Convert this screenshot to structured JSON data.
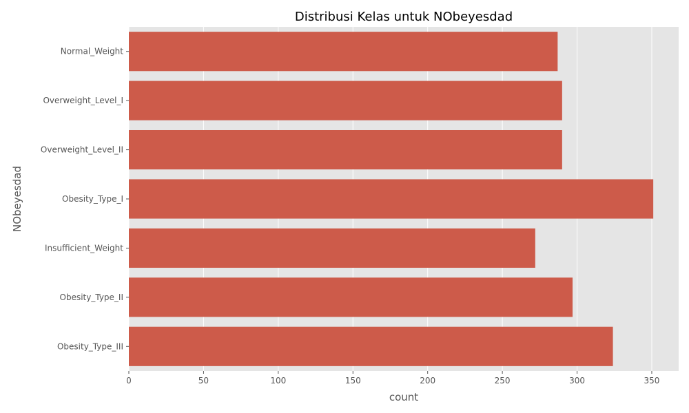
{
  "chart_data": {
    "type": "bar",
    "orientation": "horizontal",
    "title": "Distribusi Kelas untuk NObeyesdad",
    "xlabel": "count",
    "ylabel": "NObeyesdad",
    "categories": [
      "Normal_Weight",
      "Overweight_Level_I",
      "Overweight_Level_II",
      "Obesity_Type_I",
      "Insufficient_Weight",
      "Obesity_Type_II",
      "Obesity_Type_III"
    ],
    "values": [
      287,
      290,
      290,
      351,
      272,
      297,
      324
    ],
    "xlim": [
      0,
      368
    ],
    "xticks": [
      0,
      50,
      100,
      150,
      200,
      250,
      300,
      350
    ],
    "grid": true,
    "colors": {
      "bar": "#cd5b4a",
      "plot_background": "#e5e5e5",
      "grid": "#ffffff"
    }
  }
}
